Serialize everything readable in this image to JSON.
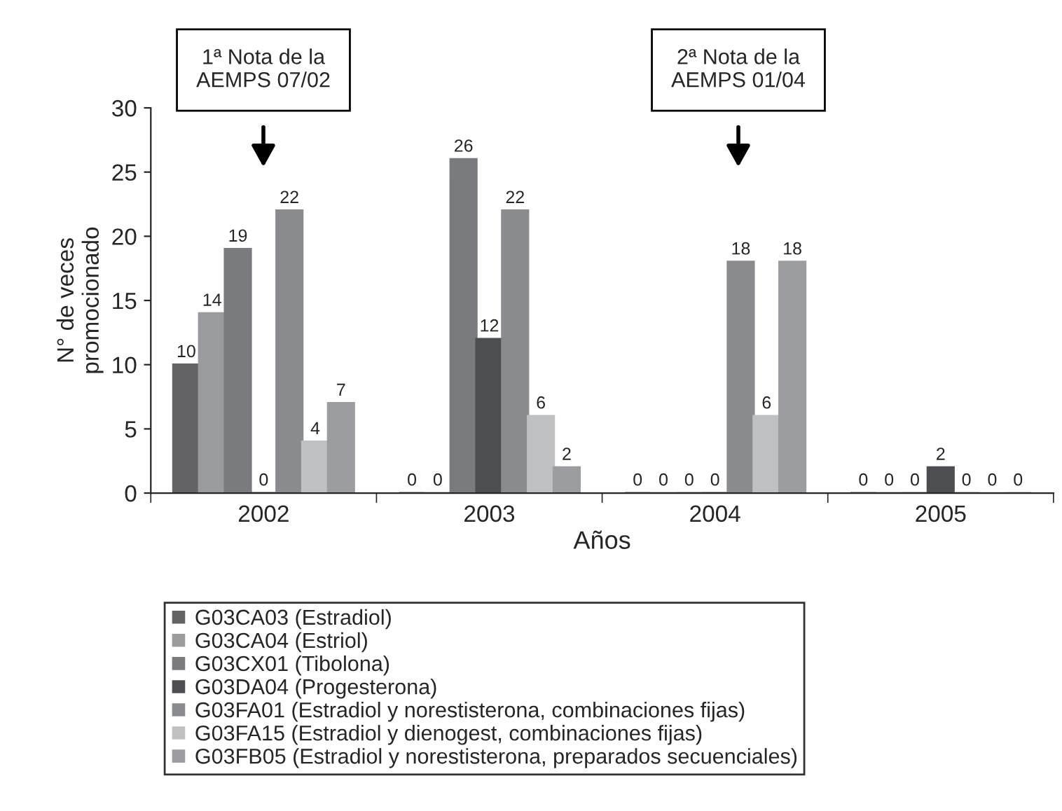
{
  "chart_data": {
    "type": "bar",
    "categories": [
      "2002",
      "2003",
      "2004",
      "2005"
    ],
    "xlabel": "Años",
    "ylabel": "N° de veces\npromocionado",
    "ylim": [
      0,
      30
    ],
    "yticks": [
      0,
      5,
      10,
      15,
      20,
      25,
      30
    ],
    "grid": false,
    "legend": "bottom",
    "data_labels": true,
    "series": [
      {
        "name": "G03CA03 (Estradiol)",
        "color": "#636366",
        "values": [
          10,
          0,
          0,
          0
        ]
      },
      {
        "name": "G03CA04 (Estriol)",
        "color": "#9a9b9e",
        "values": [
          14,
          0,
          0,
          0
        ]
      },
      {
        "name": "G03CX01 (Tibolona)",
        "color": "#7a7b7f",
        "values": [
          19,
          26,
          0,
          0
        ]
      },
      {
        "name": "G03DA04 (Progesterona)",
        "color": "#4d4e51",
        "values": [
          0,
          12,
          0,
          2
        ]
      },
      {
        "name": "G03FA01 (Estradiol y norestisterona, combinaciones fijas)",
        "color": "#8a8b8e",
        "values": [
          22,
          22,
          18,
          0
        ]
      },
      {
        "name": "G03FA15 (Estradiol y dienogest, combinaciones fijas)",
        "color": "#bfc0c2",
        "values": [
          4,
          6,
          6,
          0
        ]
      },
      {
        "name": "G03FB05 (Estradiol y norestisterona, preparados secuenciales)",
        "color": "#9c9da0",
        "values": [
          7,
          2,
          18,
          0
        ]
      }
    ],
    "annotations": [
      "1ª Nota de la\nAEMPS 07/02",
      "2ª Nota de la\nAEMPS 01/04"
    ]
  }
}
